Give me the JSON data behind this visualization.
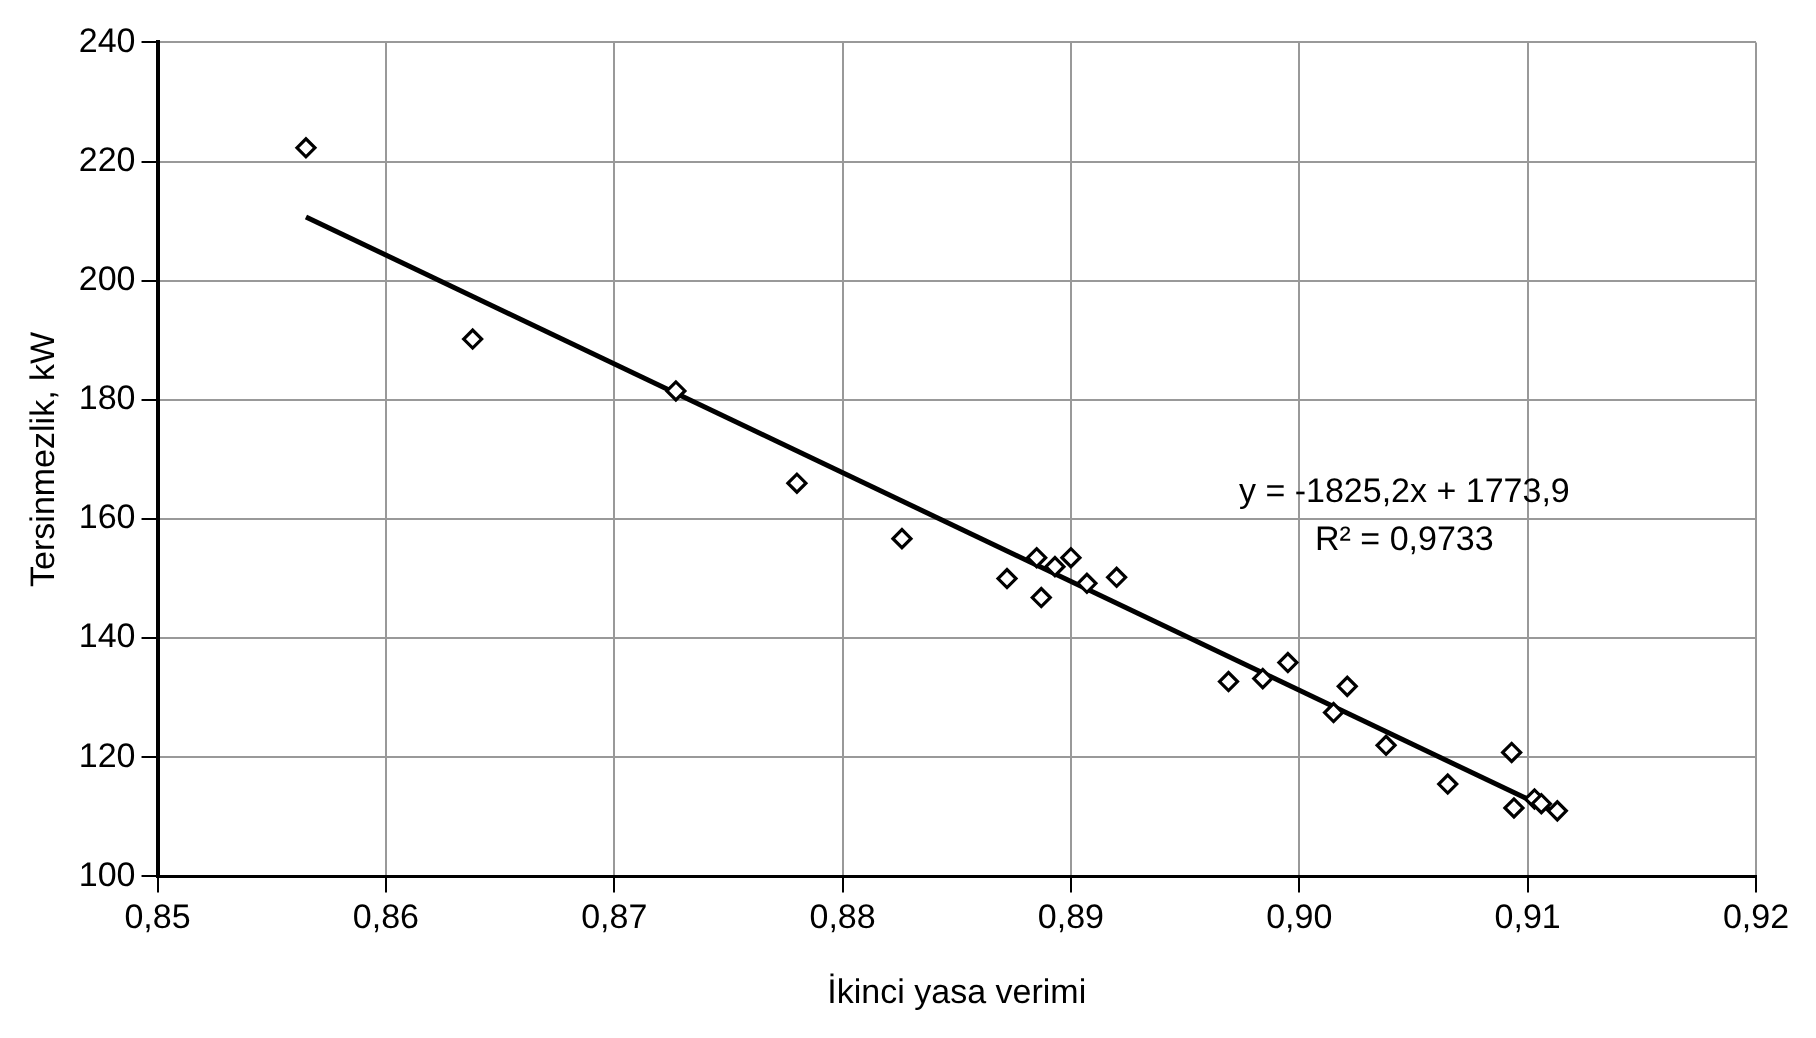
{
  "chart_data": {
    "type": "scatter",
    "xlabel": "İkinci yasa verimi",
    "ylabel": "Tersinmezlik, kW",
    "xlim": [
      0.85,
      0.92
    ],
    "xticks": [
      {
        "value": 0.85,
        "label": "0,85"
      },
      {
        "value": 0.86,
        "label": "0,86"
      },
      {
        "value": 0.87,
        "label": "0,87"
      },
      {
        "value": 0.88,
        "label": "0,88"
      },
      {
        "value": 0.89,
        "label": "0,89"
      },
      {
        "value": 0.9,
        "label": "0,90"
      },
      {
        "value": 0.91,
        "label": "0,91"
      },
      {
        "value": 0.92,
        "label": "0,92"
      }
    ],
    "ylim": [
      100,
      240
    ],
    "yticks": [
      100,
      120,
      140,
      160,
      180,
      200,
      220,
      240
    ],
    "grid": true,
    "legend": false,
    "marker": "diamond",
    "series": [
      {
        "color": "#000000",
        "x": [
          0.8565,
          0.8638,
          0.8727,
          0.878,
          0.8826,
          0.8872,
          0.8885,
          0.8887,
          0.8893,
          0.89,
          0.8907,
          0.892,
          0.8969,
          0.8984,
          0.8995,
          0.9015,
          0.9021,
          0.9038,
          0.9065,
          0.9093,
          0.9094,
          0.9103,
          0.9106,
          0.9113
        ],
        "values": [
          222.3,
          190.2,
          181.5,
          166,
          156.7,
          150,
          153.5,
          146.8,
          152,
          153.5,
          149.2,
          150.2,
          132.7,
          133.2,
          135.9,
          127.5,
          131.9,
          122,
          115.5,
          120.8,
          111.5,
          113,
          112.2,
          111
        ]
      },
      {
        "type": "line",
        "color": "#000000",
        "marker": "none",
        "line_style": "solid",
        "x": [
          0.8565,
          0.9113
        ],
        "values": [
          210.7,
          110.6
        ]
      }
    ],
    "annotations": [
      "y = -1825,2x + 1773,9",
      "R² = 0,9733"
    ]
  }
}
